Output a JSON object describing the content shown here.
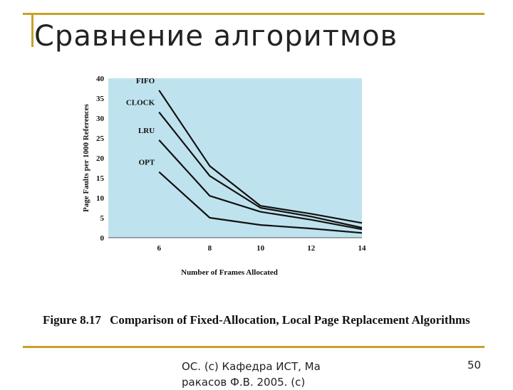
{
  "slide": {
    "title": "Сравнение алгоритмов",
    "footer_text": "ОС. (с) Кафедра ИСТ, Ма ракасов Ф.В. 2005. (с)",
    "page_number": "50"
  },
  "figure": {
    "number": "Figure 8.17",
    "caption": "Comparison of Fixed-Allocation, Local Page Replacement Algorithms"
  },
  "chart_data": {
    "type": "line",
    "xlabel": "Number of Frames Allocated",
    "ylabel": "Page Faults per 1000 References",
    "x_ticks": [
      6,
      8,
      10,
      12,
      14
    ],
    "y_ticks": [
      0,
      5,
      10,
      15,
      20,
      25,
      30,
      35,
      40
    ],
    "xlim": [
      4,
      14
    ],
    "ylim": [
      0,
      40
    ],
    "x": [
      6,
      8,
      10,
      12,
      14
    ],
    "series": [
      {
        "name": "FIFO",
        "values": [
          37,
          18,
          8,
          6,
          3.7
        ]
      },
      {
        "name": "CLOCK",
        "values": [
          31.5,
          15.5,
          7.5,
          5.3,
          2.5
        ]
      },
      {
        "name": "LRU",
        "values": [
          24.5,
          10.5,
          6.5,
          4.5,
          2.1
        ]
      },
      {
        "name": "OPT",
        "values": [
          16.5,
          5,
          3.2,
          2.3,
          1.2
        ]
      }
    ],
    "grid": false,
    "colors": {
      "plot_background": "#bfe3ee",
      "line": "#111111"
    }
  }
}
